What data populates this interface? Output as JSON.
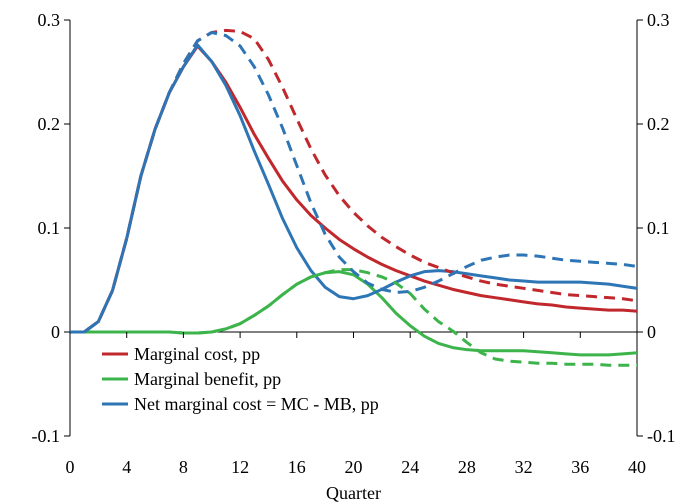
{
  "chart_data": {
    "type": "line",
    "title": "",
    "xlabel": "Quarter",
    "ylabel": "",
    "xlim": [
      0,
      40
    ],
    "ylim": [
      -0.1,
      0.3
    ],
    "x_ticks": [
      "0",
      "4",
      "8",
      "12",
      "16",
      "20",
      "24",
      "28",
      "32",
      "36",
      "40"
    ],
    "y_ticks_left": [
      "-0.1",
      "0",
      "0.1",
      "0.2",
      "0.3"
    ],
    "y_ticks_right": [
      "-0.1",
      "0",
      "0.1",
      "0.2",
      "0.3"
    ],
    "grid": false,
    "legend_position": "bottom-left",
    "legend": [
      {
        "label": "Marginal cost, pp",
        "color": "#c0282d"
      },
      {
        "label": "Marginal benefit, pp",
        "color": "#3cb44b"
      },
      {
        "label": "Net marginal cost = MC - MB, pp",
        "color": "#2e75b6"
      }
    ],
    "x": [
      0,
      1,
      2,
      3,
      4,
      5,
      6,
      7,
      8,
      9,
      10,
      11,
      12,
      13,
      14,
      15,
      16,
      17,
      18,
      19,
      20,
      21,
      22,
      23,
      24,
      25,
      26,
      27,
      28,
      29,
      30,
      31,
      32,
      33,
      34,
      35,
      36,
      37,
      38,
      39,
      40
    ],
    "series": [
      {
        "name": "Marginal cost, pp",
        "style": "solid",
        "color": "#c0282d",
        "values": [
          0,
          0,
          0.01,
          0.04,
          0.09,
          0.15,
          0.195,
          0.23,
          0.255,
          0.275,
          0.26,
          0.24,
          0.216,
          0.19,
          0.167,
          0.145,
          0.127,
          0.112,
          0.1,
          0.089,
          0.08,
          0.072,
          0.065,
          0.059,
          0.054,
          0.049,
          0.045,
          0.041,
          0.038,
          0.035,
          0.033,
          0.031,
          0.029,
          0.027,
          0.026,
          0.024,
          0.023,
          0.022,
          0.021,
          0.021,
          0.02
        ]
      },
      {
        "name": "Marginal benefit, pp",
        "style": "solid",
        "color": "#3cb44b",
        "values": [
          0,
          0,
          0,
          0,
          0,
          0,
          0,
          0,
          -0.001,
          -0.001,
          0,
          0.003,
          0.008,
          0.016,
          0.025,
          0.036,
          0.046,
          0.053,
          0.057,
          0.058,
          0.055,
          0.046,
          0.033,
          0.018,
          0.006,
          -0.004,
          -0.011,
          -0.015,
          -0.017,
          -0.018,
          -0.018,
          -0.018,
          -0.018,
          -0.019,
          -0.02,
          -0.021,
          -0.022,
          -0.022,
          -0.022,
          -0.021,
          -0.02
        ]
      },
      {
        "name": "Net marginal cost = MC - MB, pp",
        "style": "solid",
        "color": "#2e75b6",
        "values": [
          0,
          0,
          0.01,
          0.04,
          0.09,
          0.15,
          0.195,
          0.23,
          0.255,
          0.276,
          0.26,
          0.237,
          0.208,
          0.174,
          0.142,
          0.109,
          0.081,
          0.059,
          0.043,
          0.034,
          0.032,
          0.035,
          0.041,
          0.048,
          0.054,
          0.058,
          0.059,
          0.058,
          0.056,
          0.054,
          0.052,
          0.05,
          0.049,
          0.048,
          0.048,
          0.048,
          0.048,
          0.047,
          0.046,
          0.044,
          0.042
        ]
      },
      {
        "name": "",
        "style": "dashed",
        "color": "#c0282d",
        "values": [
          0,
          0,
          0.01,
          0.04,
          0.09,
          0.15,
          0.195,
          0.23,
          0.258,
          0.28,
          0.288,
          0.29,
          0.289,
          0.282,
          0.262,
          0.235,
          0.205,
          0.176,
          0.151,
          0.131,
          0.115,
          0.102,
          0.091,
          0.082,
          0.074,
          0.067,
          0.062,
          0.057,
          0.053,
          0.049,
          0.046,
          0.044,
          0.042,
          0.04,
          0.038,
          0.036,
          0.035,
          0.034,
          0.033,
          0.032,
          0.03
        ]
      },
      {
        "name": "",
        "style": "dashed",
        "color": "#3cb44b",
        "values": [
          0,
          0,
          0,
          0,
          0,
          0,
          0,
          0,
          -0.001,
          -0.001,
          0,
          0.003,
          0.008,
          0.016,
          0.025,
          0.036,
          0.046,
          0.053,
          0.057,
          0.06,
          0.06,
          0.057,
          0.053,
          0.047,
          0.037,
          0.022,
          0.01,
          0.001,
          -0.01,
          -0.02,
          -0.026,
          -0.028,
          -0.029,
          -0.03,
          -0.03,
          -0.031,
          -0.031,
          -0.031,
          -0.032,
          -0.032,
          -0.032
        ]
      },
      {
        "name": "",
        "style": "dashed",
        "color": "#2e75b6",
        "values": [
          0,
          0,
          0.01,
          0.04,
          0.09,
          0.15,
          0.195,
          0.23,
          0.258,
          0.28,
          0.288,
          0.285,
          0.275,
          0.255,
          0.228,
          0.196,
          0.16,
          0.124,
          0.094,
          0.072,
          0.058,
          0.047,
          0.041,
          0.038,
          0.039,
          0.043,
          0.049,
          0.056,
          0.063,
          0.069,
          0.072,
          0.074,
          0.074,
          0.073,
          0.071,
          0.069,
          0.068,
          0.067,
          0.066,
          0.065,
          0.063
        ]
      }
    ]
  }
}
